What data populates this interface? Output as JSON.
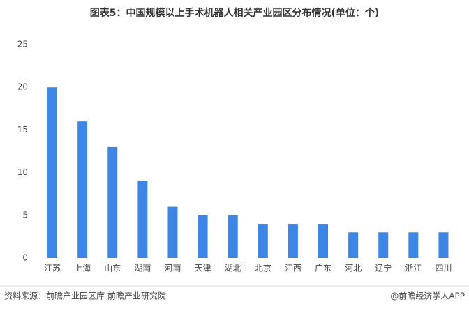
{
  "chart_data": {
    "type": "bar",
    "title": "图表5：中国规模以上手术机器人相关产业园区分布情况(单位：个)",
    "categories": [
      "江苏",
      "上海",
      "山东",
      "湖南",
      "河南",
      "天津",
      "湖北",
      "北京",
      "江西",
      "广东",
      "河北",
      "辽宁",
      "浙江",
      "四川"
    ],
    "values": [
      20,
      16,
      13,
      9,
      6,
      5,
      5,
      4,
      4,
      4,
      3,
      3,
      3,
      3
    ],
    "color": "#3d86e6",
    "ylim": [
      0,
      25
    ],
    "yticks": [
      0,
      5,
      10,
      15,
      20,
      25
    ],
    "grid": false,
    "source": "资料来源：前瞻产业园区库 前瞻产业研究院",
    "credit": "@前瞻经济学人APP"
  }
}
